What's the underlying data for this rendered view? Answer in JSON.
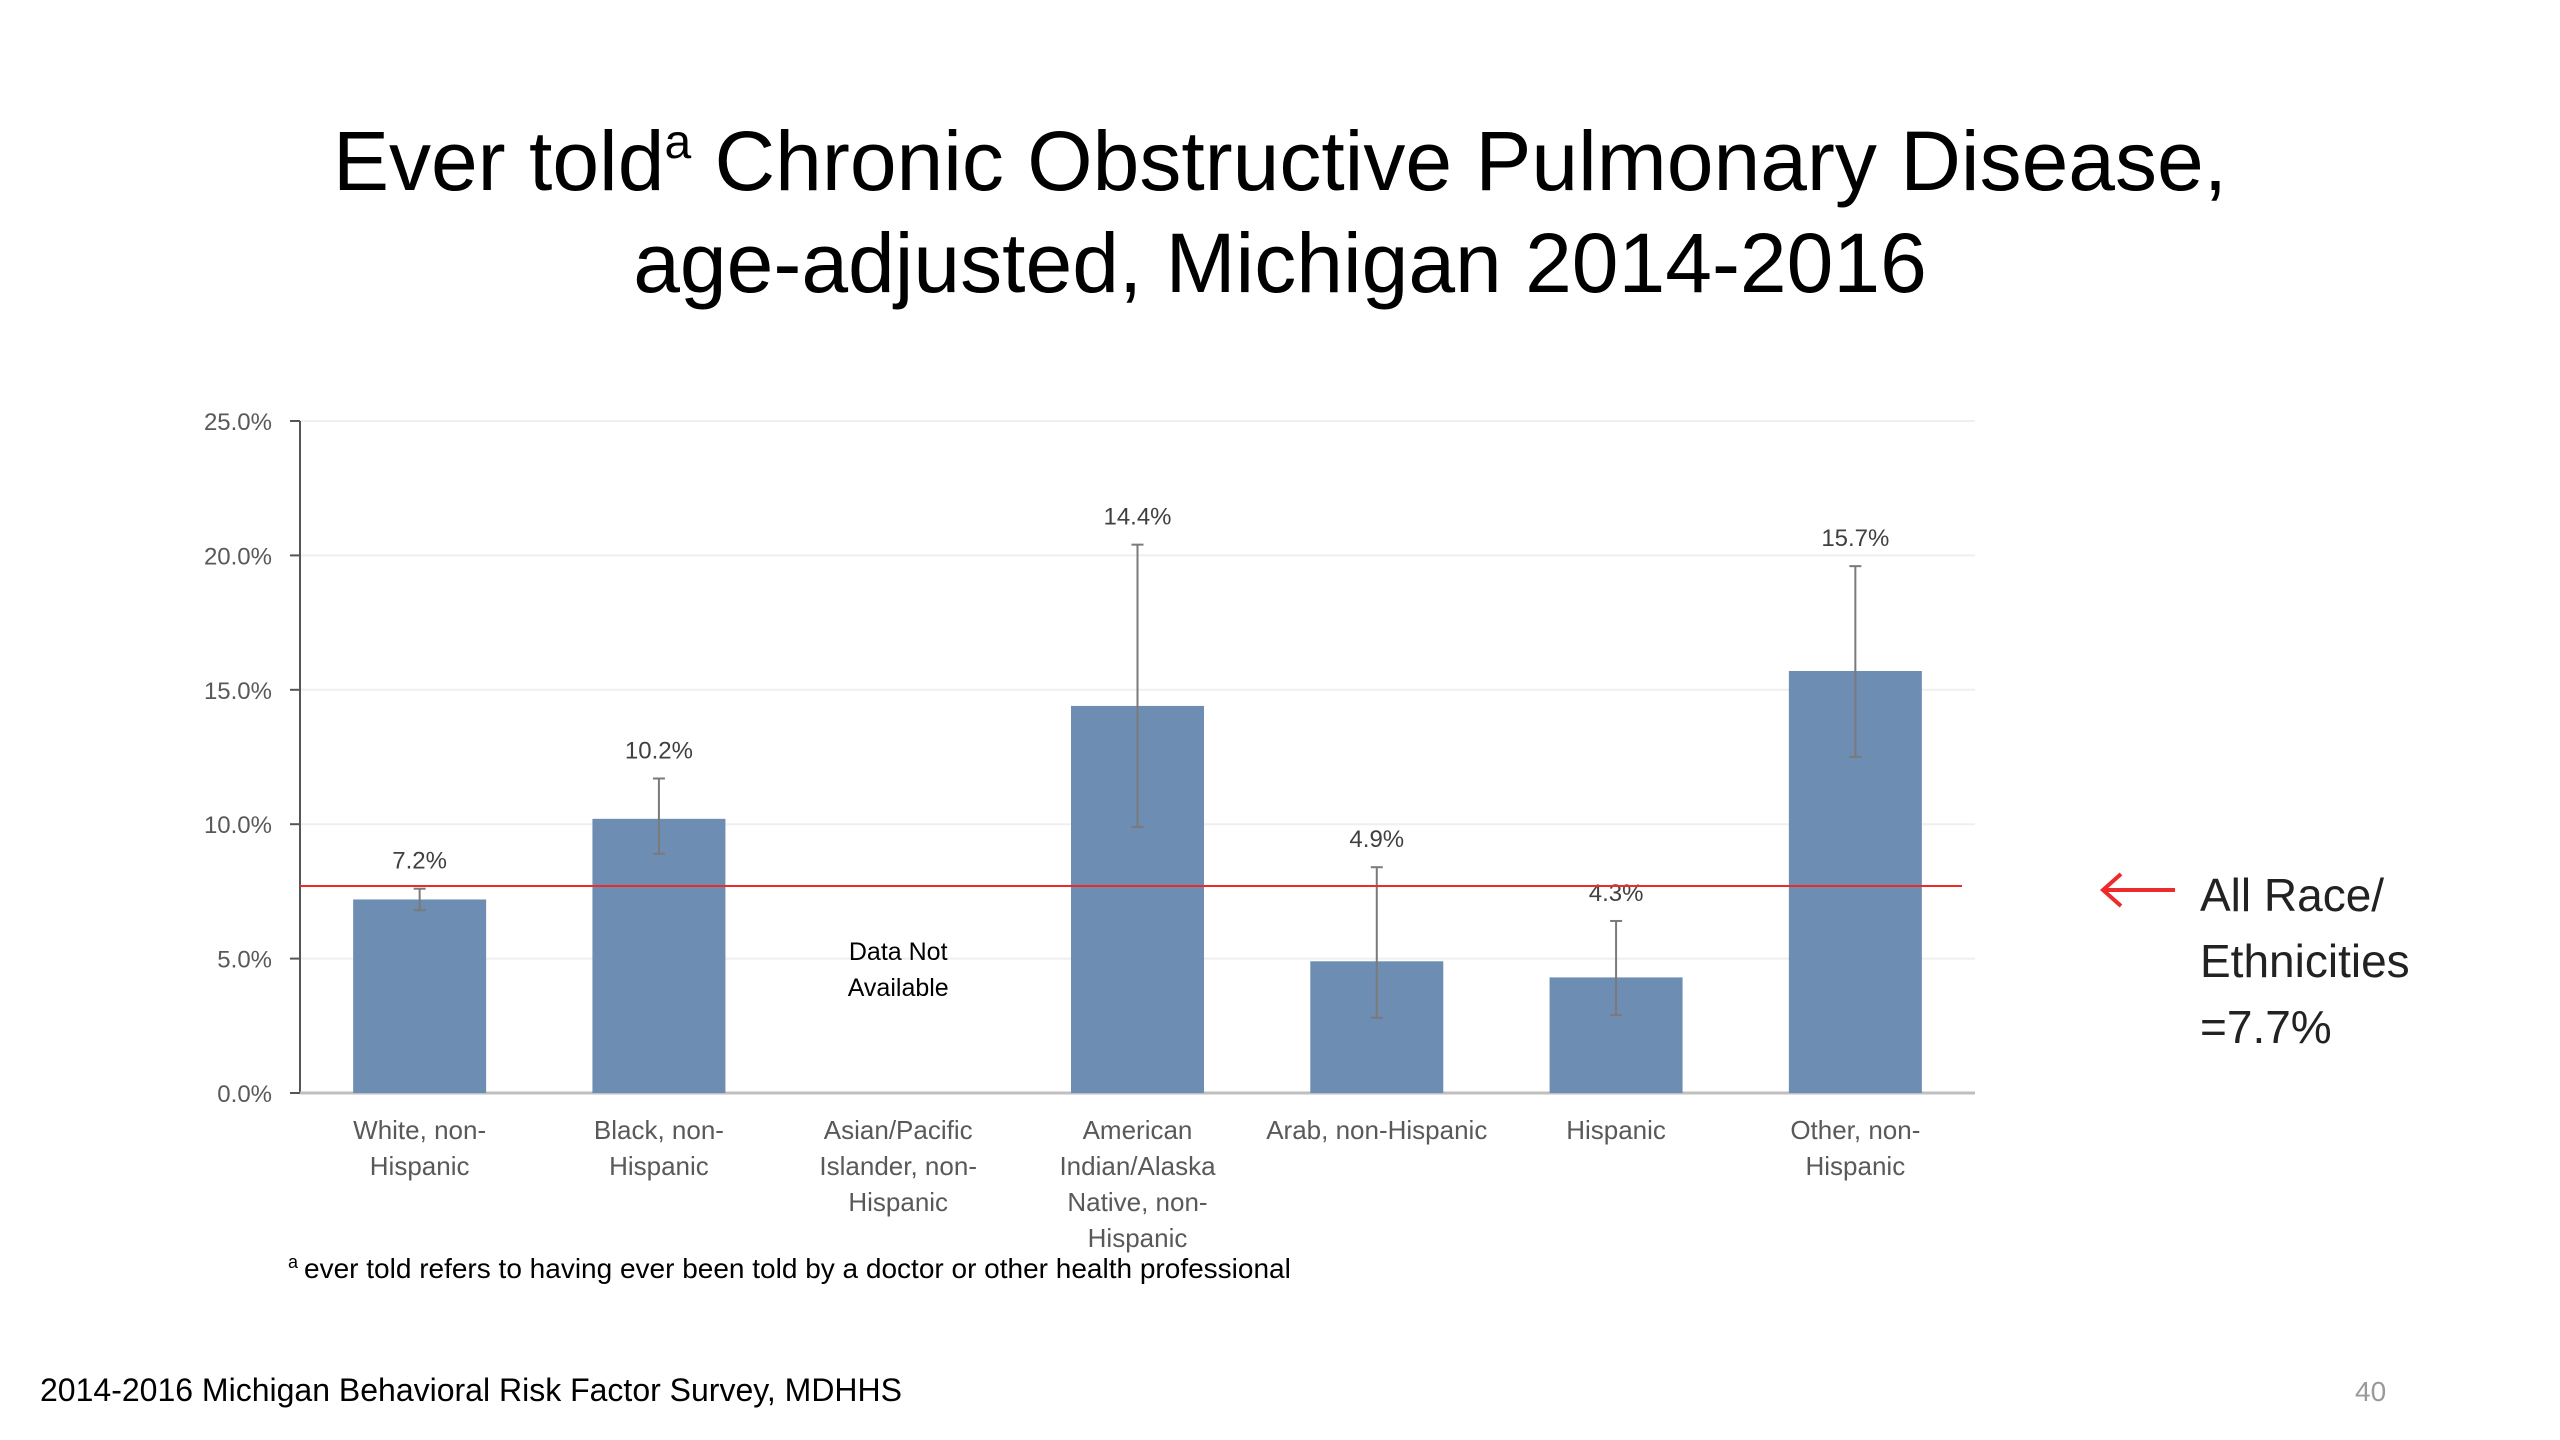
{
  "slide": {
    "title_part1": "Ever told",
    "title_superscript": "a",
    "title_part2": " Chronic Obstructive Pulmonary Disease,",
    "title_line2": "age-adjusted, Michigan 2014-2016",
    "footnote_marker": "a",
    "footnote": "ever told refers to having ever been told by a doctor or other health professional",
    "source": "2014-2016 Michigan Behavioral Risk Factor Survey, MDHHS",
    "page_number": "40"
  },
  "reference": {
    "value": 7.7,
    "label_lines": [
      "All Race/",
      "Ethnicities",
      "=7.7%"
    ],
    "color": "#ee2b2b"
  },
  "chart_data": {
    "type": "bar",
    "categories": [
      [
        "White, non-",
        "Hispanic"
      ],
      [
        "Black, non-",
        "Hispanic"
      ],
      [
        "Asian/Pacific",
        "Islander, non-",
        "Hispanic"
      ],
      [
        "American",
        "Indian/Alaska",
        "Native, non-",
        "Hispanic"
      ],
      [
        "Arab, non-Hispanic"
      ],
      [
        "Hispanic"
      ],
      [
        "Other, non-",
        "Hispanic"
      ]
    ],
    "values": [
      7.2,
      10.2,
      null,
      14.4,
      4.9,
      4.3,
      15.7
    ],
    "data_labels": [
      "7.2%",
      "10.2%",
      "",
      "14.4%",
      "4.9%",
      "4.3%",
      "15.7%"
    ],
    "error_low": [
      6.8,
      8.9,
      null,
      9.9,
      2.8,
      2.9,
      12.5
    ],
    "error_high": [
      7.6,
      11.7,
      null,
      20.4,
      8.4,
      6.4,
      19.6
    ],
    "missing_note": [
      "Data Not",
      "Available"
    ],
    "ylim": [
      0,
      25
    ],
    "yticks": [
      0,
      5,
      10,
      15,
      20,
      25
    ],
    "ytick_labels": [
      "0.0%",
      "5.0%",
      "10.0%",
      "15.0%",
      "20.0%",
      "25.0%"
    ],
    "grid": true,
    "bar_color": "#6d8db3",
    "error_bar_color": "#7a7a7a"
  }
}
